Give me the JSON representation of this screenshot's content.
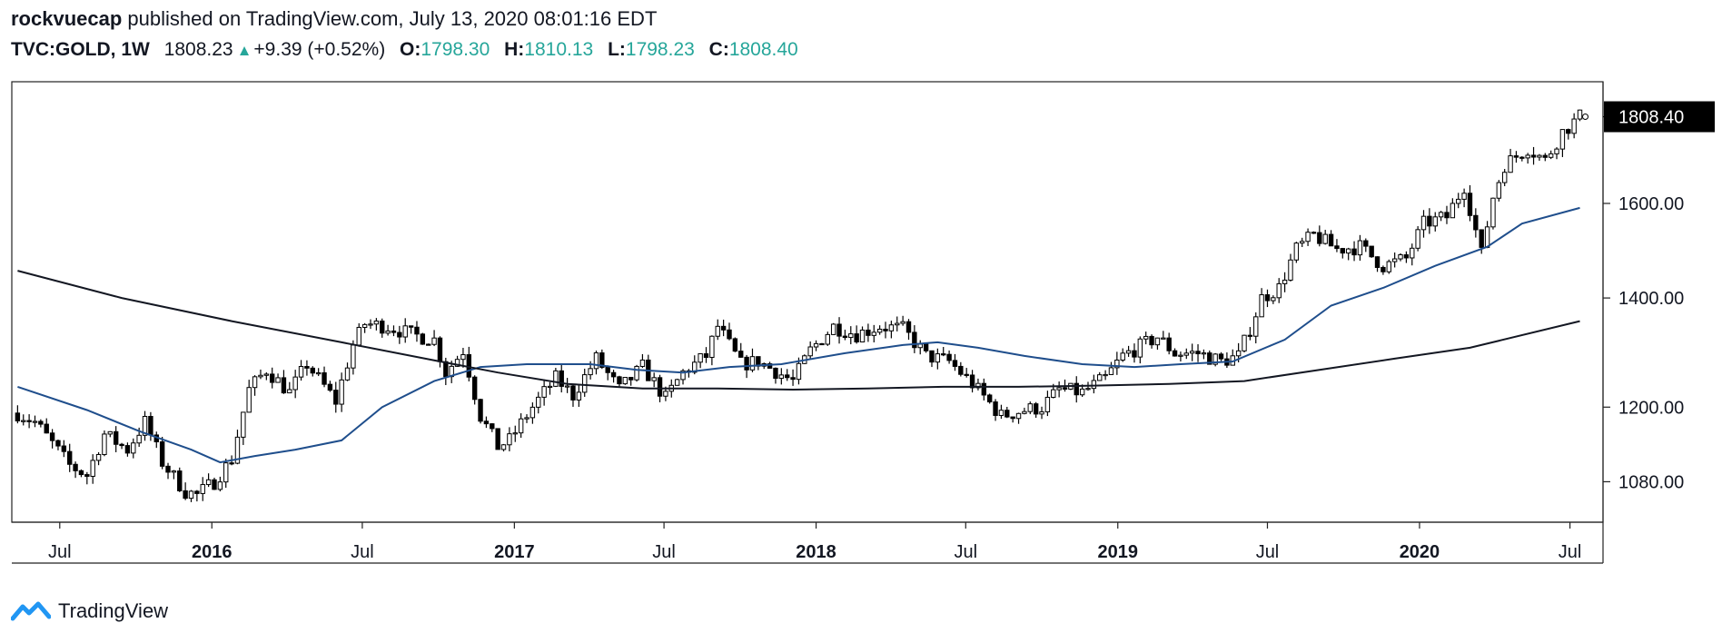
{
  "header": {
    "author": "rockvuecap",
    "published_text": " published on TradingView.com, July 13, 2020 08:01:16 EDT",
    "symbol": "TVC:GOLD, 1W",
    "price": "1808.23",
    "change": "+9.39 (+0.52%)",
    "open_label": "O:",
    "open": "1798.30",
    "high_label": "H:",
    "high": "1810.13",
    "low_label": "L:",
    "low": "1798.23",
    "close_label": "C:",
    "close": "1808.40"
  },
  "footer": {
    "brand": "TradingView",
    "logo_icon": "tradingview-logo-icon"
  },
  "colors": {
    "up_arrow": "#26a69a",
    "ma_fast": "#1f4e8c",
    "ma_slow": "#131722",
    "last_price_bg": "#000000"
  },
  "chart_data": {
    "type": "candlestick",
    "interval": "1W",
    "y_scale": "log",
    "ylim": [
      1020,
      1900
    ],
    "xlim": [
      "2015-05-04",
      "2020-08-10"
    ],
    "last_price_label": "1808.40",
    "y_ticks": [
      {
        "value": 1080,
        "label": "1080.00"
      },
      {
        "value": 1200,
        "label": "1200.00"
      },
      {
        "value": 1400,
        "label": "1400.00"
      },
      {
        "value": 1600,
        "label": "1600.00"
      }
    ],
    "x_ticks": [
      {
        "date": "2015-07-01",
        "label": "Jul",
        "bold": false
      },
      {
        "date": "2016-01-01",
        "label": "2016",
        "bold": true
      },
      {
        "date": "2016-07-01",
        "label": "Jul",
        "bold": false
      },
      {
        "date": "2017-01-01",
        "label": "2017",
        "bold": true
      },
      {
        "date": "2017-07-01",
        "label": "Jul",
        "bold": false
      },
      {
        "date": "2018-01-01",
        "label": "2018",
        "bold": true
      },
      {
        "date": "2018-07-01",
        "label": "Jul",
        "bold": false
      },
      {
        "date": "2019-01-01",
        "label": "2019",
        "bold": true
      },
      {
        "date": "2019-07-01",
        "label": "Jul",
        "bold": false
      },
      {
        "date": "2020-01-01",
        "label": "2020",
        "bold": true
      },
      {
        "date": "2020-07-01",
        "label": "Jul",
        "bold": false
      }
    ],
    "close_path": [
      [
        "2015-05-11",
        1190
      ],
      [
        "2015-06-01",
        1175
      ],
      [
        "2015-07-13",
        1105
      ],
      [
        "2015-08-03",
        1090
      ],
      [
        "2015-08-24",
        1155
      ],
      [
        "2015-09-21",
        1130
      ],
      [
        "2015-10-12",
        1175
      ],
      [
        "2015-11-02",
        1110
      ],
      [
        "2015-11-30",
        1065
      ],
      [
        "2015-12-14",
        1060
      ],
      [
        "2016-01-04",
        1080
      ],
      [
        "2016-01-25",
        1115
      ],
      [
        "2016-02-15",
        1230
      ],
      [
        "2016-03-07",
        1265
      ],
      [
        "2016-04-04",
        1225
      ],
      [
        "2016-04-25",
        1275
      ],
      [
        "2016-05-30",
        1210
      ],
      [
        "2016-06-20",
        1310
      ],
      [
        "2016-07-04",
        1350
      ],
      [
        "2016-08-01",
        1345
      ],
      [
        "2016-08-29",
        1330
      ],
      [
        "2016-09-26",
        1320
      ],
      [
        "2016-10-10",
        1260
      ],
      [
        "2016-10-31",
        1300
      ],
      [
        "2016-11-21",
        1185
      ],
      [
        "2016-12-12",
        1135
      ],
      [
        "2016-12-26",
        1145
      ],
      [
        "2017-01-23",
        1200
      ],
      [
        "2017-02-20",
        1250
      ],
      [
        "2017-03-13",
        1220
      ],
      [
        "2017-04-10",
        1285
      ],
      [
        "2017-05-08",
        1230
      ],
      [
        "2017-06-05",
        1270
      ],
      [
        "2017-07-03",
        1215
      ],
      [
        "2017-07-24",
        1260
      ],
      [
        "2017-08-21",
        1290
      ],
      [
        "2017-09-04",
        1345
      ],
      [
        "2017-10-02",
        1275
      ],
      [
        "2017-10-23",
        1280
      ],
      [
        "2017-12-04",
        1245
      ],
      [
        "2017-12-25",
        1300
      ],
      [
        "2018-01-22",
        1345
      ],
      [
        "2018-02-19",
        1330
      ],
      [
        "2018-03-19",
        1345
      ],
      [
        "2018-04-16",
        1340
      ],
      [
        "2018-05-14",
        1290
      ],
      [
        "2018-06-11",
        1280
      ],
      [
        "2018-07-09",
        1240
      ],
      [
        "2018-08-13",
        1185
      ],
      [
        "2018-09-10",
        1195
      ],
      [
        "2018-10-01",
        1200
      ],
      [
        "2018-10-22",
        1230
      ],
      [
        "2018-11-19",
        1225
      ],
      [
        "2018-12-17",
        1250
      ],
      [
        "2019-01-07",
        1290
      ],
      [
        "2019-02-18",
        1325
      ],
      [
        "2019-03-11",
        1295
      ],
      [
        "2019-04-08",
        1295
      ],
      [
        "2019-05-06",
        1280
      ],
      [
        "2019-05-27",
        1290
      ],
      [
        "2019-06-10",
        1340
      ],
      [
        "2019-06-24",
        1400
      ],
      [
        "2019-07-15",
        1420
      ],
      [
        "2019-08-05",
        1500
      ],
      [
        "2019-08-26",
        1530
      ],
      [
        "2019-09-23",
        1500
      ],
      [
        "2019-10-21",
        1505
      ],
      [
        "2019-11-18",
        1465
      ],
      [
        "2019-12-16",
        1480
      ],
      [
        "2020-01-06",
        1555
      ],
      [
        "2020-02-03",
        1570
      ],
      [
        "2020-02-24",
        1640
      ],
      [
        "2020-03-16",
        1490
      ],
      [
        "2020-03-30",
        1615
      ],
      [
        "2020-04-13",
        1690
      ],
      [
        "2020-05-11",
        1730
      ],
      [
        "2020-06-01",
        1700
      ],
      [
        "2020-06-22",
        1770
      ],
      [
        "2020-07-13",
        1808
      ]
    ],
    "series": [
      {
        "points": [
          [
            "2015-05-11",
            1235
          ],
          [
            "2015-08-03",
            1195
          ],
          [
            "2015-10-05",
            1160
          ],
          [
            "2015-12-07",
            1130
          ],
          [
            "2016-01-11",
            1110
          ],
          [
            "2016-02-22",
            1120
          ],
          [
            "2016-04-11",
            1130
          ],
          [
            "2016-06-06",
            1145
          ],
          [
            "2016-07-25",
            1200
          ],
          [
            "2016-09-26",
            1245
          ],
          [
            "2016-11-21",
            1270
          ],
          [
            "2017-01-16",
            1275
          ],
          [
            "2017-04-03",
            1275
          ],
          [
            "2017-05-29",
            1265
          ],
          [
            "2017-07-24",
            1260
          ],
          [
            "2017-09-18",
            1270
          ],
          [
            "2017-11-20",
            1275
          ],
          [
            "2018-02-05",
            1295
          ],
          [
            "2018-04-16",
            1310
          ],
          [
            "2018-05-28",
            1315
          ],
          [
            "2018-07-16",
            1305
          ],
          [
            "2018-09-10",
            1290
          ],
          [
            "2018-11-19",
            1275
          ],
          [
            "2019-01-21",
            1270
          ],
          [
            "2019-03-18",
            1275
          ],
          [
            "2019-05-20",
            1280
          ],
          [
            "2019-07-22",
            1320
          ],
          [
            "2019-09-16",
            1385
          ],
          [
            "2019-11-18",
            1420
          ],
          [
            "2020-01-20",
            1465
          ],
          [
            "2020-03-23",
            1505
          ],
          [
            "2020-05-04",
            1555
          ],
          [
            "2020-07-13",
            1590
          ]
        ]
      },
      {
        "points": [
          [
            "2015-05-11",
            1455
          ],
          [
            "2015-09-14",
            1400
          ],
          [
            "2016-01-25",
            1355
          ],
          [
            "2016-06-06",
            1315
          ],
          [
            "2016-10-03",
            1280
          ],
          [
            "2016-12-12",
            1260
          ],
          [
            "2017-03-06",
            1240
          ],
          [
            "2017-06-05",
            1232
          ],
          [
            "2017-09-04",
            1232
          ],
          [
            "2017-12-04",
            1230
          ],
          [
            "2018-03-05",
            1232
          ],
          [
            "2018-06-04",
            1235
          ],
          [
            "2018-09-03",
            1235
          ],
          [
            "2018-12-03",
            1237
          ],
          [
            "2019-03-04",
            1240
          ],
          [
            "2019-06-03",
            1245
          ],
          [
            "2019-09-02",
            1265
          ],
          [
            "2019-12-02",
            1285
          ],
          [
            "2020-03-02",
            1305
          ],
          [
            "2020-07-13",
            1355
          ]
        ]
      }
    ]
  }
}
